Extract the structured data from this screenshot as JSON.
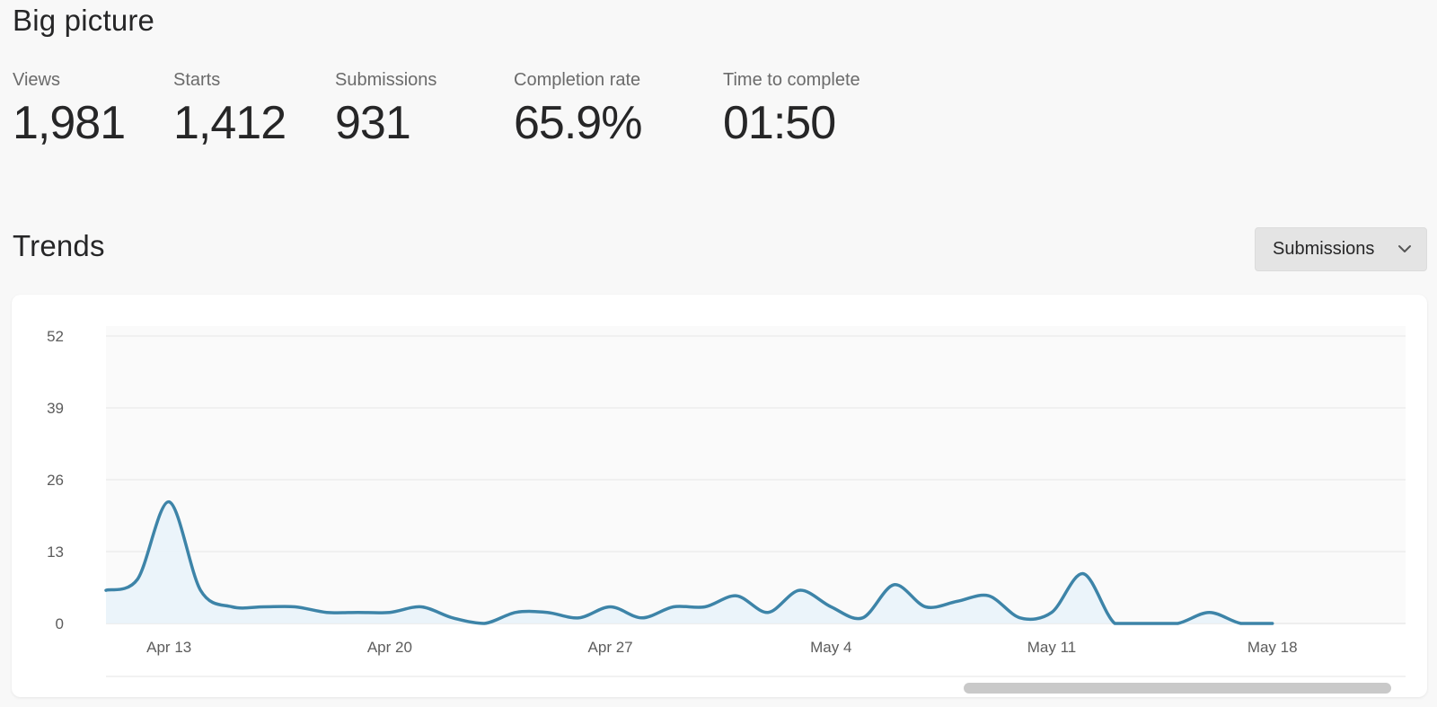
{
  "big_picture": {
    "title": "Big picture",
    "stats": [
      {
        "label": "Views",
        "value": "1,981"
      },
      {
        "label": "Starts",
        "value": "1,412"
      },
      {
        "label": "Submissions",
        "value": "931"
      },
      {
        "label": "Completion rate",
        "value": "65.9%"
      },
      {
        "label": "Time to complete",
        "value": "01:50"
      }
    ]
  },
  "trends": {
    "title": "Trends",
    "dropdown": {
      "selected": "Submissions",
      "icon": "chevron-down-icon"
    }
  },
  "colors": {
    "line": "#3d84a8",
    "fill": "#e9f3f9",
    "grid": "#e6e6e6"
  },
  "chart_data": {
    "type": "area",
    "ylim": [
      0,
      52
    ],
    "yticks": [
      0,
      13,
      26,
      39,
      52
    ],
    "xticks": [
      "Apr 13",
      "Apr 20",
      "Apr 27",
      "May 4",
      "May 11",
      "May 18"
    ],
    "x": [
      "Apr 11",
      "Apr 12",
      "Apr 13",
      "Apr 14",
      "Apr 15",
      "Apr 16",
      "Apr 17",
      "Apr 18",
      "Apr 19",
      "Apr 20",
      "Apr 21",
      "Apr 22",
      "Apr 23",
      "Apr 24",
      "Apr 25",
      "Apr 26",
      "Apr 27",
      "Apr 28",
      "Apr 29",
      "Apr 30",
      "May 1",
      "May 2",
      "May 3",
      "May 4",
      "May 5",
      "May 6",
      "May 7",
      "May 8",
      "May 9",
      "May 10",
      "May 11",
      "May 12",
      "May 13",
      "May 14",
      "May 15",
      "May 16",
      "May 17",
      "May 18"
    ],
    "series": [
      {
        "values": [
          6,
          8,
          22,
          6,
          3,
          3,
          3,
          2,
          2,
          2,
          3,
          1,
          0,
          2,
          2,
          1,
          3,
          1,
          3,
          3,
          5,
          2,
          6,
          3,
          1,
          7,
          3,
          4,
          5,
          1,
          2,
          9,
          0,
          0,
          0,
          2,
          0,
          0
        ]
      }
    ],
    "grid": true,
    "legend": "none"
  }
}
